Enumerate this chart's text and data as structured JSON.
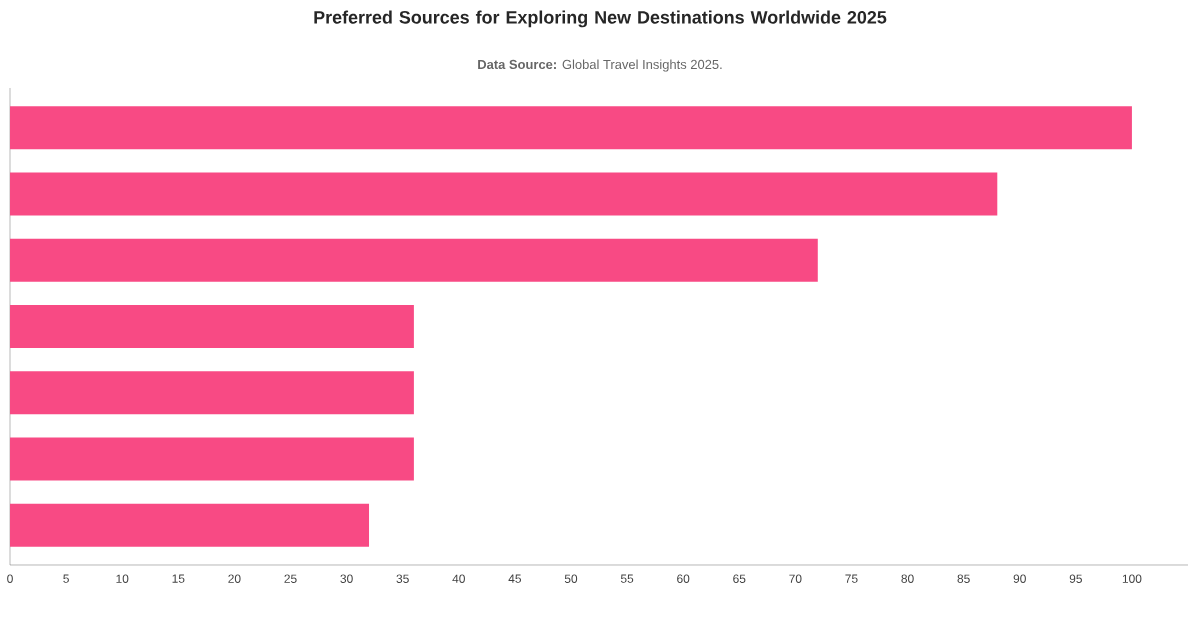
{
  "chart_data": {
    "type": "bar",
    "orientation": "horizontal",
    "title": "Preferred Sources for Exploring New Destinations Worldwide 2025",
    "subtitle": "**Data Source:** Global Travel Insights 2025.",
    "categories": [
      null,
      null,
      null,
      null,
      null,
      null,
      null
    ],
    "values": [
      100,
      88,
      72,
      36,
      36,
      36,
      32
    ],
    "color": "#f84a84",
    "xlim": [
      0,
      105
    ],
    "xticks": [
      0,
      5,
      10,
      15,
      20,
      25,
      30,
      35,
      40,
      45,
      50,
      55,
      60,
      65,
      70,
      75,
      80,
      85,
      90,
      95,
      100
    ],
    "tick_labels": "x",
    "grid": false
  }
}
